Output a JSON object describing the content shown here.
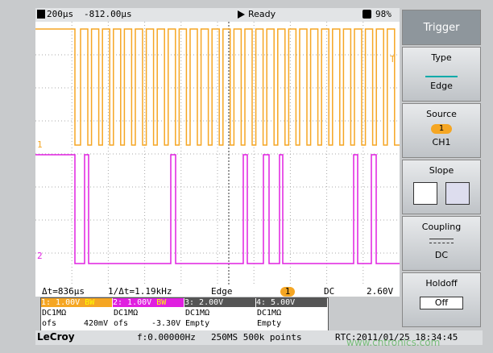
{
  "status_bar": {
    "timebase": "200µs",
    "delay": "-812.00µs",
    "state": "Ready",
    "battery": "98%"
  },
  "markers": {
    "trigger": "T",
    "ch1": "1",
    "ch2": "2"
  },
  "menu": {
    "title": "Trigger",
    "items": [
      {
        "label": "Type",
        "value": "Edge"
      },
      {
        "label": "Source",
        "badge": "1",
        "value": "CH1"
      },
      {
        "label": "Slope"
      },
      {
        "label": "Coupling",
        "value": "DC"
      },
      {
        "label": "Holdoff",
        "value": "Off"
      }
    ]
  },
  "measure": {
    "delta_t": "Δt=836µs",
    "inv_delta_t": "1/Δt=1.19kHz",
    "trigger_type": "Edge",
    "trigger_source": "1",
    "coupling": "DC",
    "level": "2.60V"
  },
  "channels": [
    {
      "scale": "1: 1.00V",
      "bw": "BW",
      "coupling": "DC1MΩ",
      "offset_label": "ofs",
      "offset": "420mV"
    },
    {
      "scale": "2: 1.00V",
      "bw": "BW",
      "coupling": "DC1MΩ",
      "offset_label": "ofs",
      "offset": "-3.30V"
    },
    {
      "scale": "3: 2.00V",
      "coupling": "DC1MΩ",
      "status": "Empty"
    },
    {
      "scale": "4: 5.00V",
      "coupling": "DC1MΩ",
      "status": "Empty"
    }
  ],
  "footer": {
    "brand": "LeCroy",
    "frequency": "f:0.00000Hz",
    "acquisition": "250MS 500k points",
    "rtc": "RTC:2011/01/25 18:34:45"
  },
  "watermark": "www.cntronics.com"
}
